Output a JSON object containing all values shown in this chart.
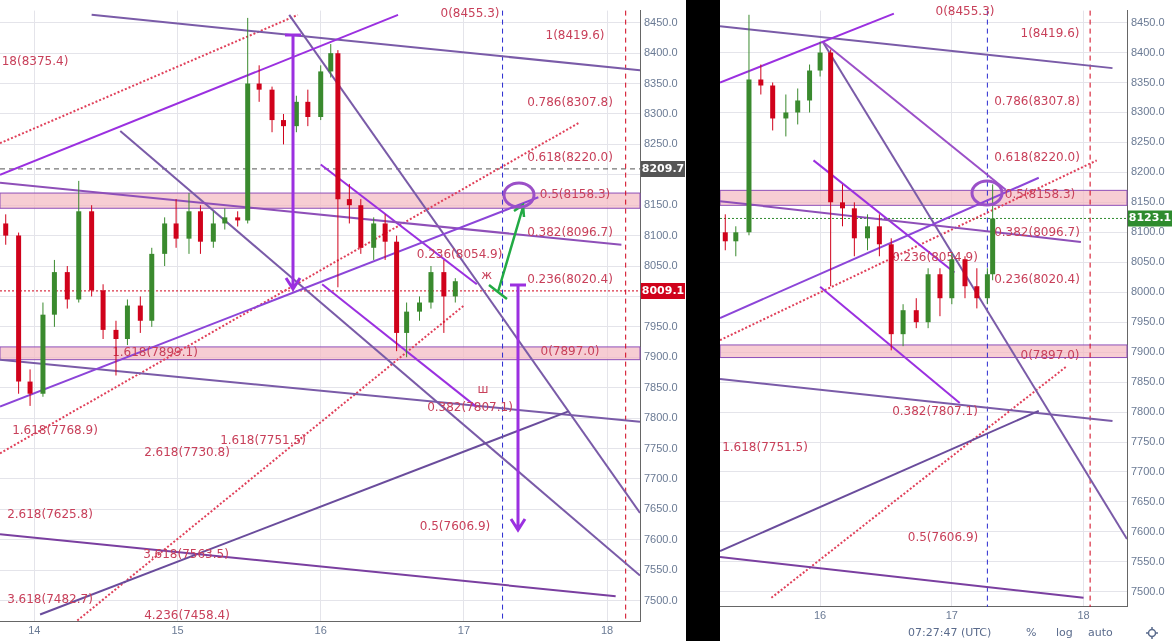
{
  "chart_data": [
    {
      "type": "candlestick",
      "x": [
        13.8,
        13.89,
        13.97,
        14.06,
        14.14,
        14.23,
        14.31,
        14.4,
        14.48,
        14.57,
        14.65,
        14.74,
        14.82,
        14.91,
        14.99,
        15.08,
        15.16,
        15.25,
        15.33,
        15.42,
        15.49,
        15.57,
        15.66,
        15.74,
        15.83,
        15.91,
        16.0,
        16.07,
        16.12,
        16.2,
        16.28,
        16.37,
        16.45,
        16.53,
        16.6,
        16.69,
        16.77,
        16.86,
        16.94
      ],
      "ohlc": [
        [
          8120,
          8135,
          8085,
          8100
        ],
        [
          8100,
          8105,
          7840,
          7860
        ],
        [
          7860,
          7880,
          7820,
          7840
        ],
        [
          7840,
          7990,
          7835,
          7970
        ],
        [
          7970,
          8060,
          7950,
          8040
        ],
        [
          8040,
          8050,
          7980,
          7995
        ],
        [
          7995,
          8190,
          7990,
          8140
        ],
        [
          8140,
          8150,
          8000,
          8010
        ],
        [
          8010,
          8020,
          7930,
          7945
        ],
        [
          7945,
          7960,
          7870,
          7930
        ],
        [
          7930,
          7995,
          7920,
          7985
        ],
        [
          7985,
          8000,
          7940,
          7960
        ],
        [
          7960,
          8080,
          7950,
          8070
        ],
        [
          8070,
          8130,
          8050,
          8120
        ],
        [
          8120,
          8160,
          8080,
          8095
        ],
        [
          8095,
          8170,
          8070,
          8140
        ],
        [
          8140,
          8150,
          8070,
          8090
        ],
        [
          8090,
          8140,
          8080,
          8120
        ],
        [
          8120,
          8145,
          8110,
          8130
        ],
        [
          8130,
          8140,
          8115,
          8125
        ],
        [
          8125,
          8458,
          8120,
          8350
        ],
        [
          8350,
          8380,
          8320,
          8340
        ],
        [
          8340,
          8345,
          8270,
          8290
        ],
        [
          8290,
          8300,
          8250,
          8280
        ],
        [
          8280,
          8330,
          8270,
          8320
        ],
        [
          8320,
          8340,
          8280,
          8295
        ],
        [
          8295,
          8380,
          8290,
          8370
        ],
        [
          8370,
          8415,
          8360,
          8400
        ],
        [
          8400,
          8405,
          8015,
          8160
        ],
        [
          8160,
          8185,
          8120,
          8150
        ],
        [
          8150,
          8160,
          8070,
          8080
        ],
        [
          8080,
          8130,
          8060,
          8120
        ],
        [
          8120,
          8135,
          8060,
          8090
        ],
        [
          8090,
          8100,
          7910,
          7940
        ],
        [
          7940,
          7990,
          7900,
          7975
        ],
        [
          7975,
          8000,
          7960,
          7990
        ],
        [
          7990,
          8050,
          7980,
          8040
        ],
        [
          8040,
          8060,
          7940,
          8000
        ],
        [
          8000,
          8030,
          7990,
          8025
        ]
      ],
      "series": [
        {
          "type": "line",
          "x": [
            13.76,
            16.54
          ],
          "values": [
            8200,
            8463
          ],
          "color": "#9b30e0"
        },
        {
          "type": "line",
          "x": [
            13.76,
            17.52
          ],
          "values": [
            7819,
            8163
          ],
          "color": "#8c45d8"
        },
        {
          "type": "line",
          "x": [
            13.76,
            18.1
          ],
          "values": [
            8187,
            8085
          ],
          "color": "#8e4fb8"
        },
        {
          "type": "line",
          "x": [
            16.0,
            17.09
          ],
          "values": [
            8217,
            8020
          ],
          "color": "#9b30e0"
        },
        {
          "type": "line",
          "x": [
            16.01,
            17.09
          ],
          "values": [
            8020,
            7818
          ],
          "color": "#9b30e0"
        },
        {
          "type": "line",
          "x": [
            13.76,
            18.06
          ],
          "values": [
            7609,
            7507
          ],
          "color": "#7a3fa0"
        },
        {
          "type": "line",
          "x": [
            14.04,
            17.73
          ],
          "values": [
            7477,
            7811
          ],
          "color": "#6a4c9c"
        },
        {
          "type": "line",
          "x": [
            14.4,
            18.23
          ],
          "values": [
            8463,
            8372
          ],
          "color": "#7a5ba8"
        },
        {
          "type": "line",
          "x": [
            13.76,
            18.23
          ],
          "values": [
            7896,
            7794
          ],
          "color": "#7a5ba8"
        },
        {
          "type": "line",
          "x": [
            15.78,
            18.23
          ],
          "values": [
            8463,
            7644
          ],
          "color": "#7a5ba8"
        },
        {
          "type": "line",
          "x": [
            14.6,
            18.23
          ],
          "values": [
            8272,
            7541
          ],
          "color": "#7a5ba8"
        },
        {
          "type": "line",
          "x": [
            13.76,
            15.84
          ],
          "values": [
            8252,
            8463
          ],
          "color": "#e0405a",
          "line_style": "dotted"
        },
        {
          "type": "line",
          "x": [
            13.76,
            17.8
          ],
          "values": [
            7742,
            8285
          ],
          "color": "#e0405a",
          "line_style": "dotted"
        },
        {
          "type": "line",
          "x": [
            14.3,
            17.0
          ],
          "values": [
            7467,
            7985
          ],
          "color": "#e0405a",
          "line_style": "dotted"
        }
      ],
      "xlim": [
        13.76,
        18.23
      ],
      "ylim": [
        7465,
        8470
      ],
      "xticks": [
        14,
        15,
        16,
        17,
        18
      ],
      "yticks": [
        {
          "value": 7500,
          "label": "7500.0"
        },
        {
          "value": 7550,
          "label": "7550.0"
        },
        {
          "value": 7600,
          "label": "7600.0"
        },
        {
          "value": 7650,
          "label": "7650.0"
        },
        {
          "value": 7700,
          "label": "7700.0"
        },
        {
          "value": 7750,
          "label": "7750.0"
        },
        {
          "value": 7800,
          "label": "7800.0"
        },
        {
          "value": 7850,
          "label": "7850.0"
        },
        {
          "value": 7900,
          "label": "7900.0"
        },
        {
          "value": 7950,
          "label": "7950.0"
        },
        {
          "value": 8000,
          "label": null
        },
        {
          "value": 8050,
          "label": "8050.0"
        },
        {
          "value": 8100,
          "label": "8100.0"
        },
        {
          "value": 8150,
          "label": "8150.0"
        },
        {
          "value": 8200,
          "label": null
        },
        {
          "value": 8250,
          "label": "8250.0"
        },
        {
          "value": 8300,
          "label": "8300.0"
        },
        {
          "value": 8350,
          "label": "8350.0"
        },
        {
          "value": 8400,
          "label": "8400.0"
        },
        {
          "value": 8450,
          "label": "8450.0"
        }
      ],
      "grid": true,
      "bands": [
        {
          "axis": "y",
          "from": 8145,
          "to": 8170,
          "color": "#f4b8c0"
        },
        {
          "axis": "y",
          "from": 7896,
          "to": 7917,
          "color": "#f4b8c0"
        }
      ],
      "ref_lines": [
        {
          "axis": "y",
          "value": 8209.7,
          "label": "8209.7",
          "color": "#555555",
          "line_style": "dashed"
        },
        {
          "axis": "y",
          "value": 8009.1,
          "label": "8009.1",
          "color": "#d0021b",
          "line_style": "dotted"
        },
        {
          "axis": "x",
          "value": 17.27,
          "color": "#2a2ad0",
          "line_style": "dashed"
        },
        {
          "axis": "x",
          "value": 18.13,
          "color": "#d0021b",
          "line_style": "dashed"
        }
      ],
      "annotations": [
        "0(8455.3)",
        "1(8419.6)",
        "0.786(8307.8)",
        "0.618(8220.0)",
        "0.5(8158.3)",
        "0.382(8096.7)",
        {
          "text": "0.236(8054.9)",
          "x": 16.9,
          "y": 8054.9
        },
        {
          "text": "ж",
          "x": 17.09,
          "y": 8020
        },
        "0.236(8020.4)",
        "1.618(7899.1)",
        "0(7897.0)",
        "ш",
        "0.382(7807.1)",
        "18(8375.4)",
        "1.618(7768.9)",
        "2.618(7730.8)",
        "1.618(7751.5)",
        "2.618(7625.8)",
        "3.618(7563.5)",
        "0.5(7606.9)",
        "3.618(7482.7)",
        "4.236(7458.4)"
      ]
    },
    {
      "type": "candlestick",
      "x": [
        15.28,
        15.36,
        15.46,
        15.55,
        15.64,
        15.74,
        15.83,
        15.92,
        16.0,
        16.08,
        16.17,
        16.26,
        16.36,
        16.45,
        16.54,
        16.63,
        16.73,
        16.82,
        16.91,
        17.0,
        17.1,
        17.19,
        17.27,
        17.31
      ],
      "ohlc": [
        [
          8100,
          8130,
          8070,
          8085
        ],
        [
          8085,
          8110,
          8060,
          8100
        ],
        [
          8100,
          8463,
          8095,
          8355
        ],
        [
          8355,
          8380,
          8330,
          8345
        ],
        [
          8345,
          8350,
          8270,
          8290
        ],
        [
          8290,
          8330,
          8260,
          8300
        ],
        [
          8300,
          8340,
          8280,
          8320
        ],
        [
          8320,
          8380,
          8300,
          8370
        ],
        [
          8370,
          8418,
          8360,
          8400
        ],
        [
          8400,
          8405,
          8010,
          8150
        ],
        [
          8150,
          8180,
          8110,
          8140
        ],
        [
          8140,
          8150,
          8060,
          8090
        ],
        [
          8090,
          8130,
          8070,
          8110
        ],
        [
          8110,
          8130,
          8060,
          8080
        ],
        [
          8080,
          8090,
          7903,
          7930
        ],
        [
          7930,
          7980,
          7910,
          7970
        ],
        [
          7970,
          7990,
          7940,
          7950
        ],
        [
          7950,
          8040,
          7940,
          8030
        ],
        [
          8030,
          8040,
          7960,
          7990
        ],
        [
          7990,
          8065,
          7980,
          8055
        ],
        [
          8055,
          8060,
          7990,
          8010
        ],
        [
          8010,
          8040,
          7973,
          7990
        ],
        [
          7990,
          8040,
          7980,
          8030
        ],
        [
          8030,
          8180,
          8020,
          8123
        ]
      ],
      "series": [
        {
          "type": "line",
          "x": [
            15.24,
            16.56
          ],
          "values": [
            8350,
            8465
          ],
          "color": "#9b30e0"
        },
        {
          "type": "line",
          "x": [
            15.24,
            17.66
          ],
          "values": [
            7957,
            8191
          ],
          "color": "#8c45d8"
        },
        {
          "type": "line",
          "x": [
            15.24,
            17.98
          ],
          "values": [
            8152,
            8084
          ],
          "color": "#8e4fb8"
        },
        {
          "type": "line",
          "x": [
            16.02,
            17.41
          ],
          "values": [
            8418,
            8171
          ],
          "color": "#9b50c8"
        },
        {
          "type": "line",
          "x": [
            15.95,
            17.02
          ],
          "values": [
            8220,
            8033
          ],
          "color": "#9b30e0"
        },
        {
          "type": "line",
          "x": [
            16.0,
            17.06
          ],
          "values": [
            8009,
            7815
          ],
          "color": "#9b30e0"
        },
        {
          "type": "line",
          "x": [
            15.24,
            18.0
          ],
          "values": [
            7558,
            7490
          ],
          "color": "#7a3fa0"
        },
        {
          "type": "line",
          "x": [
            15.24,
            17.66
          ],
          "values": [
            7568,
            7802
          ],
          "color": "#6a4c9c"
        },
        {
          "type": "line",
          "x": [
            15.24,
            18.22
          ],
          "values": [
            8444,
            8374
          ],
          "color": "#7a5ba8"
        },
        {
          "type": "line",
          "x": [
            15.24,
            18.22
          ],
          "values": [
            7855,
            7785
          ],
          "color": "#7a5ba8"
        },
        {
          "type": "line",
          "x": [
            16.02,
            18.33
          ],
          "values": [
            8418,
            7588
          ],
          "color": "#7a5ba8"
        },
        {
          "type": "line",
          "x": [
            15.24,
            18.1
          ],
          "values": [
            7920,
            8220
          ],
          "color": "#e0405a",
          "line_style": "dotted"
        },
        {
          "type": "line",
          "x": [
            15.63,
            17.87
          ],
          "values": [
            7490,
            7876
          ],
          "color": "#e0405a",
          "line_style": "dotted"
        }
      ],
      "xlim": [
        15.24,
        18.33
      ],
      "ylim": [
        7475,
        8470
      ],
      "xticks": [
        16,
        17,
        18
      ],
      "yticks": [
        {
          "value": 7500,
          "label": "7500.0"
        },
        {
          "value": 7550,
          "label": "7550.0"
        },
        {
          "value": 7600,
          "label": "7600.0"
        },
        {
          "value": 7650,
          "label": "7650.0"
        },
        {
          "value": 7700,
          "label": "7700.0"
        },
        {
          "value": 7750,
          "label": "7750.0"
        },
        {
          "value": 7800,
          "label": "7800.0"
        },
        {
          "value": 7850,
          "label": "7850.0"
        },
        {
          "value": 7900,
          "label": "7900.0"
        },
        {
          "value": 7950,
          "label": "7950.0"
        },
        {
          "value": 8000,
          "label": "8000.0"
        },
        {
          "value": 8050,
          "label": "8050.0"
        },
        {
          "value": 8100,
          "label": "8100.0"
        },
        {
          "value": 8150,
          "label": "8150.0"
        },
        {
          "value": 8200,
          "label": "8200.0"
        },
        {
          "value": 8250,
          "label": "8250.0"
        },
        {
          "value": 8300,
          "label": "8300.0"
        },
        {
          "value": 8350,
          "label": "8350.0"
        },
        {
          "value": 8400,
          "label": "8400.0"
        },
        {
          "value": 8450,
          "label": "8450.0"
        }
      ],
      "grid": true,
      "bands": [
        {
          "axis": "y",
          "from": 8145,
          "to": 8170,
          "color": "#f4b8c0"
        },
        {
          "axis": "y",
          "from": 7891,
          "to": 7912,
          "color": "#f4b8c0"
        }
      ],
      "ref_lines": [
        {
          "axis": "y",
          "value": 8123.1,
          "label": "8123.1",
          "color": "#2e8b2e",
          "line_style": "dotted"
        },
        {
          "axis": "x",
          "value": 17.27,
          "color": "#2a2ad0",
          "line_style": "dashed"
        },
        {
          "axis": "x",
          "value": 18.05,
          "color": "#d0021b",
          "line_style": "dashed"
        }
      ],
      "annotations": [
        "0(8455.3)",
        "1(8419.6)",
        "0.786(8307.8)",
        "0.618(8220.0)",
        "0.5(8158.3)",
        "0.382(8096.7)",
        "0.236(8054.9)",
        "0.236(8020.4)",
        "0(7897.0)",
        "0.382(7807.1)",
        "1.618(7751.5)",
        "0.5(7606.9)",
        "07:27:47 (UTC)",
        "%",
        "log",
        "auto"
      ]
    }
  ]
}
